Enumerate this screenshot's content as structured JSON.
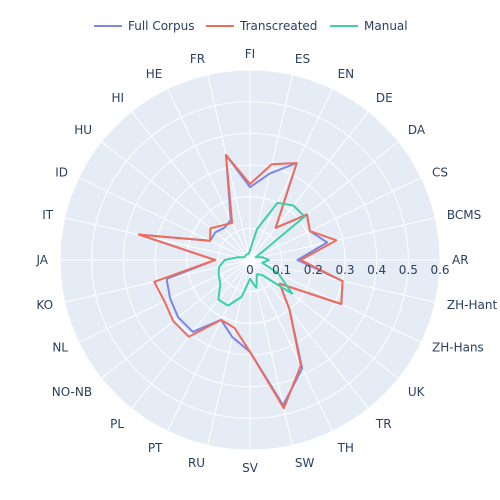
{
  "chart_data": {
    "type": "radar",
    "categories": [
      "FI",
      "ES",
      "EN",
      "DE",
      "DA",
      "CS",
      "BCMS",
      "AR",
      "ZH-Hant",
      "ZH-Hans",
      "UK",
      "TR",
      "TH",
      "SW",
      "SV",
      "RU",
      "PT",
      "PL",
      "NO-NB",
      "NL",
      "KO",
      "JA",
      "IT",
      "ID",
      "HU",
      "HI",
      "HE",
      "FR"
    ],
    "radial_ticks": [
      "0",
      "0.1",
      "0.2",
      "0.3",
      "0.4",
      "0.5",
      "0.6"
    ],
    "rmax": 0.6,
    "legend_position": "top",
    "series": [
      {
        "name": "Full Corpus",
        "color": "#7b86e9",
        "values": [
          0.23,
          0.28,
          0.34,
          0.13,
          0.23,
          0.21,
          0.25,
          0.15,
          0.3,
          0.32,
          0.12,
          0.2,
          0.38,
          0.47,
          0.29,
          0.25,
          0.21,
          0.29,
          0.29,
          0.28,
          0.27,
          0.11,
          0.36,
          0.14,
          0.14,
          0.13,
          0.14,
          0.34
        ]
      },
      {
        "name": "Transcreated",
        "color": "#ef6c5a",
        "values": [
          0.24,
          0.31,
          0.34,
          0.13,
          0.23,
          0.21,
          0.28,
          0.16,
          0.3,
          0.32,
          0.12,
          0.2,
          0.37,
          0.48,
          0.29,
          0.22,
          0.21,
          0.31,
          0.31,
          0.3,
          0.31,
          0.11,
          0.36,
          0.14,
          0.16,
          0.14,
          0.13,
          0.34
        ]
      },
      {
        "name": "Manual",
        "color": "#3ccfa8",
        "values": [
          0.03,
          0.1,
          0.2,
          0.22,
          0.22,
          0.02,
          0.04,
          0.06,
          0.04,
          0.1,
          0.17,
          0.06,
          0.05,
          0.09,
          0.06,
          0.12,
          0.16,
          0.16,
          0.12,
          0.11,
          0.1,
          0.08,
          0.04,
          0.02,
          0.02,
          0.02,
          0.02,
          0.02
        ]
      }
    ]
  }
}
